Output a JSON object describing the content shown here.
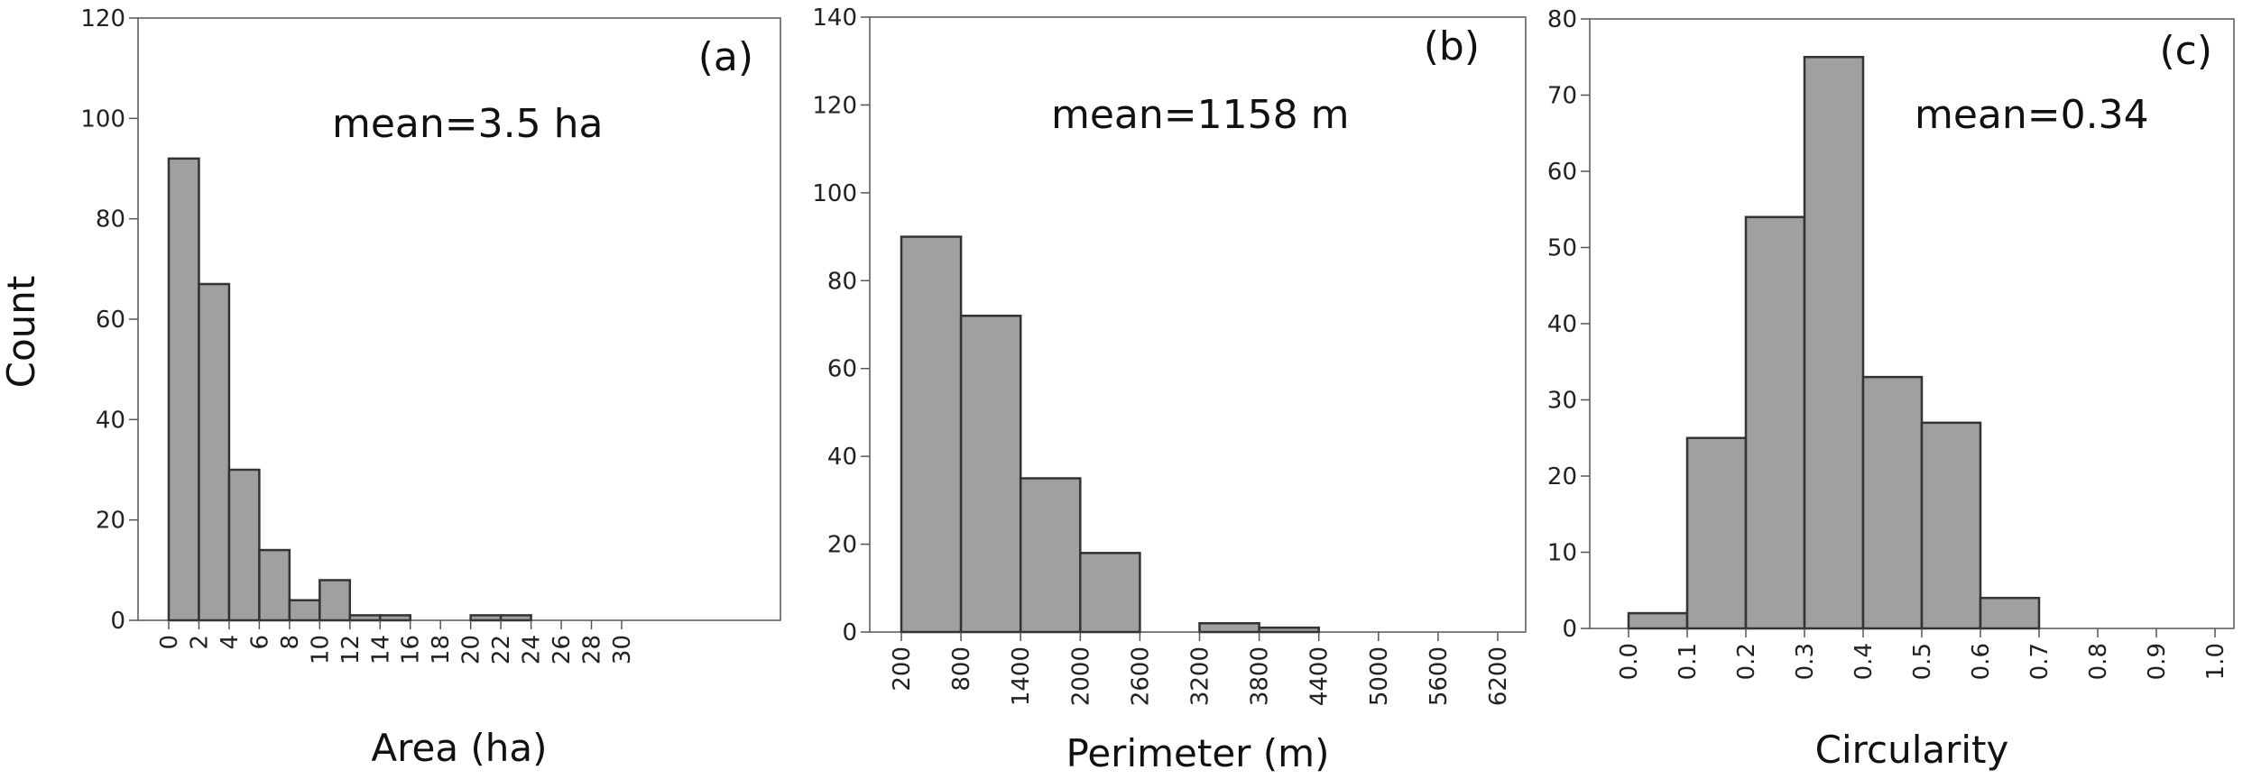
{
  "figure": {
    "shared_ylabel": "Count"
  },
  "chart_data": [
    {
      "type": "bar",
      "panel_label": "(a)",
      "annotation": "mean=3.5 ha",
      "xlabel": "Area (ha)",
      "ylabel": "Count",
      "ylim": [
        0,
        120
      ],
      "yticks": [
        0,
        20,
        40,
        60,
        80,
        100,
        120
      ],
      "xlim": [
        0,
        30
      ],
      "xticks": [
        "0",
        "2",
        "4",
        "6",
        "8",
        "10",
        "12",
        "14",
        "16",
        "18",
        "20",
        "22",
        "24",
        "26",
        "28",
        "30"
      ],
      "bins": [
        {
          "from": 0,
          "to": 2,
          "count": 92
        },
        {
          "from": 2,
          "to": 4,
          "count": 67
        },
        {
          "from": 4,
          "to": 6,
          "count": 30
        },
        {
          "from": 6,
          "to": 8,
          "count": 14
        },
        {
          "from": 8,
          "to": 10,
          "count": 4
        },
        {
          "from": 10,
          "to": 12,
          "count": 8
        },
        {
          "from": 12,
          "to": 14,
          "count": 1
        },
        {
          "from": 14,
          "to": 16,
          "count": 1
        },
        {
          "from": 16,
          "to": 18,
          "count": 0
        },
        {
          "from": 18,
          "to": 20,
          "count": 0
        },
        {
          "from": 20,
          "to": 22,
          "count": 1
        },
        {
          "from": 22,
          "to": 24,
          "count": 1
        },
        {
          "from": 24,
          "to": 26,
          "count": 0
        },
        {
          "from": 26,
          "to": 28,
          "count": 0
        },
        {
          "from": 28,
          "to": 30,
          "count": 0
        }
      ]
    },
    {
      "type": "bar",
      "panel_label": "(b)",
      "annotation": "mean=1158 m",
      "xlabel": "Perimeter (m)",
      "ylabel": "Count",
      "ylim": [
        0,
        140
      ],
      "yticks": [
        0,
        20,
        40,
        60,
        80,
        100,
        120,
        140
      ],
      "xlim": [
        200,
        6200
      ],
      "xticks": [
        "200",
        "800",
        "1400",
        "2000",
        "2600",
        "3200",
        "3800",
        "4400",
        "5000",
        "5600",
        "6200"
      ],
      "bins": [
        {
          "from": 200,
          "to": 800,
          "count": 90
        },
        {
          "from": 800,
          "to": 1400,
          "count": 72
        },
        {
          "from": 1400,
          "to": 2000,
          "count": 35
        },
        {
          "from": 2000,
          "to": 2600,
          "count": 18
        },
        {
          "from": 2600,
          "to": 3200,
          "count": 0
        },
        {
          "from": 3200,
          "to": 3800,
          "count": 2
        },
        {
          "from": 3800,
          "to": 4400,
          "count": 1
        },
        {
          "from": 4400,
          "to": 5000,
          "count": 0
        },
        {
          "from": 5000,
          "to": 5600,
          "count": 0
        },
        {
          "from": 5600,
          "to": 6200,
          "count": 0
        }
      ]
    },
    {
      "type": "bar",
      "panel_label": "(c)",
      "annotation": "mean=0.34",
      "xlabel": "Circularity",
      "ylabel": "Count",
      "ylim": [
        0,
        80
      ],
      "yticks": [
        0,
        10,
        20,
        30,
        40,
        50,
        60,
        70,
        80
      ],
      "xlim": [
        0,
        1
      ],
      "xticks": [
        "0.0",
        "0.1",
        "0.2",
        "0.3",
        "0.4",
        "0.5",
        "0.6",
        "0.7",
        "0.8",
        "0.9",
        "1.0"
      ],
      "bins": [
        {
          "from": 0.0,
          "to": 0.1,
          "count": 2
        },
        {
          "from": 0.1,
          "to": 0.2,
          "count": 25
        },
        {
          "from": 0.2,
          "to": 0.3,
          "count": 54
        },
        {
          "from": 0.3,
          "to": 0.4,
          "count": 75
        },
        {
          "from": 0.4,
          "to": 0.5,
          "count": 33
        },
        {
          "from": 0.5,
          "to": 0.6,
          "count": 27
        },
        {
          "from": 0.6,
          "to": 0.7,
          "count": 4
        },
        {
          "from": 0.7,
          "to": 0.8,
          "count": 0
        },
        {
          "from": 0.8,
          "to": 0.9,
          "count": 0
        },
        {
          "from": 0.9,
          "to": 1.0,
          "count": 0
        }
      ]
    }
  ]
}
